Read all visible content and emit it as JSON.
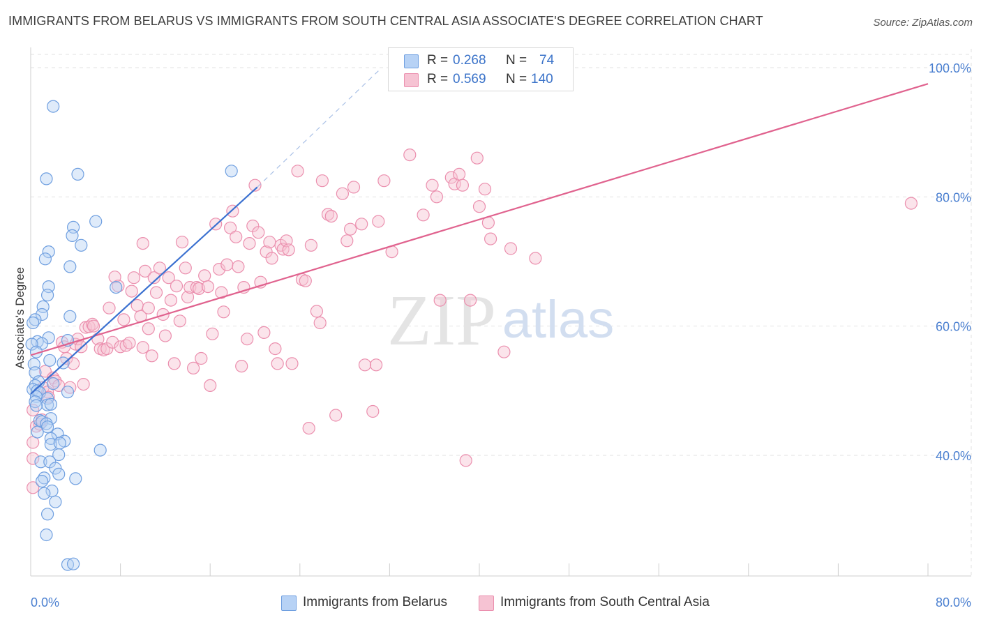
{
  "title": "IMMIGRANTS FROM BELARUS VS IMMIGRANTS FROM SOUTH CENTRAL ASIA ASSOCIATE'S DEGREE CORRELATION CHART",
  "source": "Source: ZipAtlas.com",
  "watermark": {
    "zip": "ZIP",
    "atlas": "atlas"
  },
  "colors": {
    "belarus_fill": "#b7d2f5",
    "belarus_stroke": "#6f9fe0",
    "belarus_line": "#3a70d0",
    "sca_fill": "#f6c3d3",
    "sca_stroke": "#eb8fae",
    "sca_line": "#e0628e",
    "tick_text": "#4a7fd0",
    "grid": "#e2e2e2"
  },
  "legend": {
    "rows": [
      {
        "r_label": "R =",
        "r_value": "0.268",
        "n_label": "N =",
        "n_value": "74"
      },
      {
        "r_label": "R =",
        "r_value": "0.569",
        "n_label": "N =",
        "n_value": "140"
      }
    ]
  },
  "bottom_legend": [
    "Immigrants from Belarus",
    "Immigrants from South Central Asia"
  ],
  "chart_data": {
    "type": "scatter",
    "title": "IMMIGRANTS FROM BELARUS VS IMMIGRANTS FROM SOUTH CENTRAL ASIA ASSOCIATE'S DEGREE CORRELATION CHART",
    "xlabel": "",
    "ylabel": "Associate's Degree",
    "xlim": [
      0,
      80
    ],
    "ylim": [
      20,
      102
    ],
    "x_tick_labels": [
      "0.0%",
      "80.0%"
    ],
    "y_ticks": [
      40,
      60,
      80,
      100
    ],
    "y_tick_labels": [
      "40.0%",
      "60.0%",
      "80.0%",
      "100.0%"
    ],
    "grid": true,
    "legend_position": "top-center",
    "series": [
      {
        "name": "Immigrants from Belarus",
        "r": 0.268,
        "n": 74,
        "trend": {
          "x0": 0,
          "y0": 49.5,
          "x1": 20.2,
          "y1": 81.5,
          "dashed_to_x": 31.0,
          "dashed_to_y": 99.5
        },
        "points": [
          [
            2.0,
            94.0
          ],
          [
            4.2,
            83.5
          ],
          [
            1.4,
            82.8
          ],
          [
            17.9,
            84.0
          ],
          [
            5.8,
            76.2
          ],
          [
            3.8,
            75.3
          ],
          [
            3.7,
            74.0
          ],
          [
            4.5,
            72.5
          ],
          [
            1.6,
            71.5
          ],
          [
            1.3,
            70.4
          ],
          [
            3.5,
            69.2
          ],
          [
            1.6,
            66.1
          ],
          [
            7.6,
            66.0
          ],
          [
            1.5,
            64.8
          ],
          [
            1.1,
            63.0
          ],
          [
            1.0,
            61.8
          ],
          [
            3.5,
            61.5
          ],
          [
            0.4,
            61.0
          ],
          [
            0.2,
            60.5
          ],
          [
            1.6,
            58.2
          ],
          [
            3.3,
            57.8
          ],
          [
            0.6,
            57.6
          ],
          [
            1.0,
            57.3
          ],
          [
            0.1,
            57.2
          ],
          [
            0.5,
            56.0
          ],
          [
            1.7,
            54.7
          ],
          [
            2.9,
            54.3
          ],
          [
            0.3,
            54.1
          ],
          [
            0.4,
            52.8
          ],
          [
            0.7,
            51.4
          ],
          [
            2.0,
            51.1
          ],
          [
            0.4,
            50.8
          ],
          [
            0.2,
            50.2
          ],
          [
            0.6,
            50.0
          ],
          [
            0.8,
            49.7
          ],
          [
            3.3,
            49.8
          ],
          [
            0.5,
            49.1
          ],
          [
            1.5,
            48.8
          ],
          [
            0.4,
            48.3
          ],
          [
            1.5,
            47.8
          ],
          [
            1.8,
            47.9
          ],
          [
            0.5,
            47.7
          ],
          [
            1.8,
            45.7
          ],
          [
            0.8,
            45.4
          ],
          [
            1.0,
            45.2
          ],
          [
            1.4,
            44.9
          ],
          [
            1.5,
            44.4
          ],
          [
            0.6,
            43.6
          ],
          [
            2.4,
            43.3
          ],
          [
            1.8,
            42.6
          ],
          [
            3.0,
            42.2
          ],
          [
            1.8,
            41.7
          ],
          [
            2.6,
            41.9
          ],
          [
            6.2,
            40.8
          ],
          [
            2.5,
            40.1
          ],
          [
            0.9,
            39.0
          ],
          [
            1.7,
            39.0
          ],
          [
            2.2,
            38.0
          ],
          [
            2.5,
            37.1
          ],
          [
            1.2,
            36.5
          ],
          [
            4.0,
            36.4
          ],
          [
            1.0,
            36.0
          ],
          [
            1.9,
            34.5
          ],
          [
            1.2,
            34.1
          ],
          [
            2.2,
            32.8
          ],
          [
            1.5,
            30.9
          ],
          [
            1.4,
            27.7
          ],
          [
            3.3,
            23.1
          ],
          [
            3.8,
            23.2
          ]
        ]
      },
      {
        "name": "Immigrants from South Central Asia",
        "r": 0.569,
        "n": 140,
        "trend": {
          "x0": 0,
          "y0": 55.5,
          "x1": 80,
          "y1": 97.5
        },
        "points": [
          [
            0.2,
            47.0
          ],
          [
            0.2,
            42.0
          ],
          [
            0.2,
            39.5
          ],
          [
            0.2,
            35.0
          ],
          [
            0.5,
            44.5
          ],
          [
            0.8,
            44.8
          ],
          [
            1.0,
            45.5
          ],
          [
            1.1,
            50.5
          ],
          [
            1.3,
            53.0
          ],
          [
            1.5,
            49.8
          ],
          [
            1.6,
            49.0
          ],
          [
            2.0,
            52.0
          ],
          [
            2.2,
            51.5
          ],
          [
            2.5,
            50.8
          ],
          [
            2.8,
            57.5
          ],
          [
            3.0,
            56.8
          ],
          [
            3.2,
            55.0
          ],
          [
            3.5,
            50.5
          ],
          [
            3.8,
            54.2
          ],
          [
            4.0,
            57.2
          ],
          [
            4.2,
            58.0
          ],
          [
            4.5,
            56.8
          ],
          [
            4.7,
            51.0
          ],
          [
            4.9,
            59.8
          ],
          [
            5.2,
            59.9
          ],
          [
            5.5,
            60.3
          ],
          [
            5.6,
            60.0
          ],
          [
            6.0,
            58.0
          ],
          [
            6.2,
            56.5
          ],
          [
            6.5,
            56.3
          ],
          [
            6.8,
            56.5
          ],
          [
            7.0,
            62.8
          ],
          [
            7.3,
            57.5
          ],
          [
            7.5,
            67.6
          ],
          [
            7.8,
            66.2
          ],
          [
            8.0,
            56.8
          ],
          [
            8.3,
            61.0
          ],
          [
            8.5,
            57.0
          ],
          [
            8.8,
            57.4
          ],
          [
            9.0,
            65.4
          ],
          [
            9.2,
            67.5
          ],
          [
            9.5,
            63.2
          ],
          [
            9.8,
            61.5
          ],
          [
            10.0,
            56.7
          ],
          [
            10.2,
            68.5
          ],
          [
            10.5,
            59.6
          ],
          [
            10.8,
            55.4
          ],
          [
            10.0,
            72.8
          ],
          [
            10.5,
            62.8
          ],
          [
            11.0,
            67.5
          ],
          [
            11.2,
            65.2
          ],
          [
            11.5,
            69.0
          ],
          [
            11.8,
            61.8
          ],
          [
            12.0,
            58.5
          ],
          [
            12.3,
            67.5
          ],
          [
            12.5,
            64.0
          ],
          [
            12.8,
            54.2
          ],
          [
            13.0,
            66.2
          ],
          [
            13.3,
            60.8
          ],
          [
            13.5,
            73.0
          ],
          [
            13.8,
            69.0
          ],
          [
            14.0,
            64.5
          ],
          [
            14.2,
            66.0
          ],
          [
            14.5,
            53.5
          ],
          [
            14.8,
            66.0
          ],
          [
            15.0,
            65.8
          ],
          [
            15.2,
            55.0
          ],
          [
            15.5,
            67.8
          ],
          [
            15.8,
            66.1
          ],
          [
            16.0,
            50.8
          ],
          [
            16.2,
            58.8
          ],
          [
            16.5,
            75.8
          ],
          [
            16.8,
            68.8
          ],
          [
            17.0,
            65.2
          ],
          [
            17.2,
            62.2
          ],
          [
            17.5,
            69.5
          ],
          [
            17.8,
            75.2
          ],
          [
            18.0,
            77.8
          ],
          [
            18.3,
            73.8
          ],
          [
            18.5,
            69.2
          ],
          [
            18.8,
            53.8
          ],
          [
            19.0,
            66.0
          ],
          [
            19.3,
            58.0
          ],
          [
            19.5,
            72.8
          ],
          [
            19.8,
            75.5
          ],
          [
            20.0,
            81.8
          ],
          [
            20.3,
            74.5
          ],
          [
            20.5,
            66.8
          ],
          [
            20.8,
            59.0
          ],
          [
            21.0,
            71.5
          ],
          [
            21.3,
            73.0
          ],
          [
            21.5,
            70.5
          ],
          [
            21.8,
            56.5
          ],
          [
            22.0,
            54.2
          ],
          [
            22.3,
            72.5
          ],
          [
            22.5,
            71.9
          ],
          [
            22.8,
            73.2
          ],
          [
            23.0,
            71.8
          ],
          [
            23.3,
            54.2
          ],
          [
            23.8,
            84.0
          ],
          [
            24.2,
            67.2
          ],
          [
            24.5,
            67.0
          ],
          [
            24.8,
            44.2
          ],
          [
            25.0,
            72.5
          ],
          [
            25.5,
            62.3
          ],
          [
            25.8,
            60.5
          ],
          [
            26.0,
            82.5
          ],
          [
            26.5,
            77.3
          ],
          [
            26.8,
            77.0
          ],
          [
            27.2,
            46.2
          ],
          [
            27.8,
            80.5
          ],
          [
            28.2,
            73.2
          ],
          [
            28.5,
            75.0
          ],
          [
            28.8,
            81.5
          ],
          [
            29.5,
            75.8
          ],
          [
            29.8,
            54.0
          ],
          [
            30.5,
            46.8
          ],
          [
            30.8,
            54.0
          ],
          [
            31.0,
            76.2
          ],
          [
            31.5,
            82.5
          ],
          [
            32.2,
            71.5
          ],
          [
            33.8,
            86.5
          ],
          [
            35.0,
            77.2
          ],
          [
            35.8,
            81.8
          ],
          [
            36.2,
            80.0
          ],
          [
            36.5,
            64.0
          ],
          [
            37.5,
            83.0
          ],
          [
            37.8,
            82.0
          ],
          [
            38.2,
            83.5
          ],
          [
            38.5,
            81.8
          ],
          [
            38.8,
            39.2
          ],
          [
            39.2,
            64.0
          ],
          [
            39.8,
            86.0
          ],
          [
            40.0,
            78.5
          ],
          [
            40.5,
            81.2
          ],
          [
            40.8,
            76.0
          ],
          [
            41.0,
            73.5
          ],
          [
            42.2,
            56.0
          ],
          [
            42.8,
            72.0
          ],
          [
            45.0,
            70.5
          ],
          [
            78.5,
            79.0
          ]
        ]
      }
    ]
  }
}
